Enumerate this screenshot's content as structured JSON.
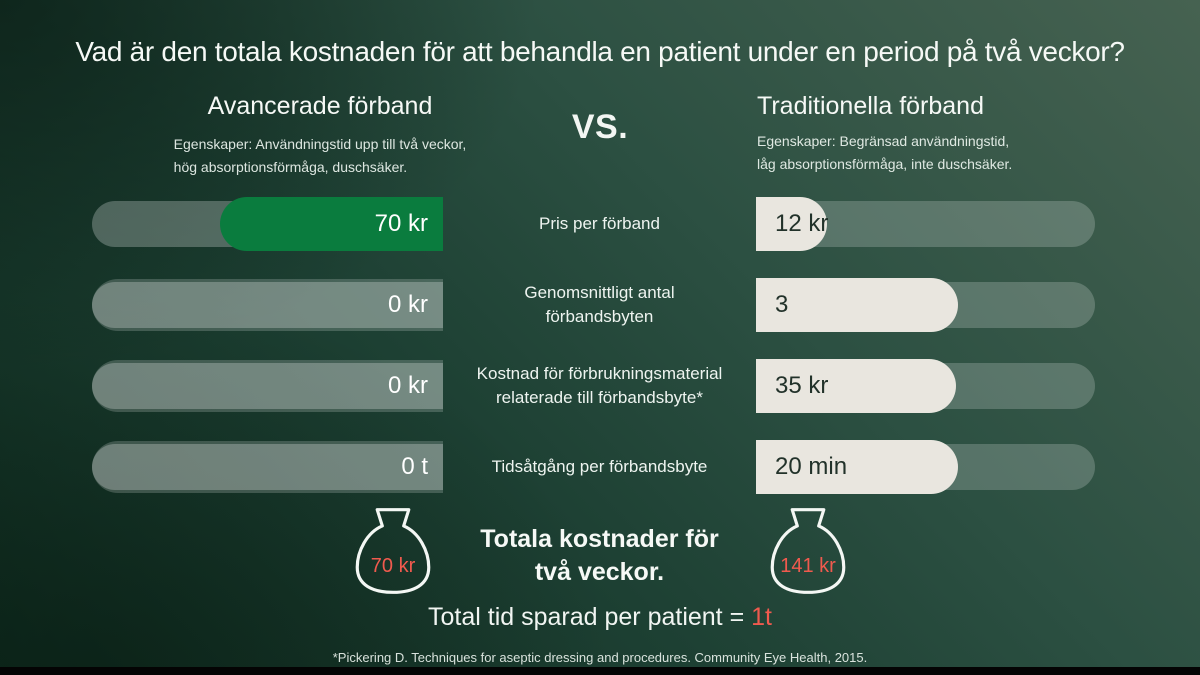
{
  "title": "Vad är den totala kostnaden för att behandla en patient under en period på två veckor?",
  "vs_label": "VS.",
  "left_column": {
    "heading": "Avancerade förband",
    "subtitle_line1": "Egenskaper: Användningstid upp till två veckor,",
    "subtitle_line2": "hög absorptionsförmåga, duschsäker."
  },
  "right_column": {
    "heading": "Traditionella förband",
    "subtitle_line1": "Egenskaper: Begränsad användningstid,",
    "subtitle_line2": "låg absorptionsförmåga, inte duschsäker."
  },
  "rows": [
    {
      "label": "Pris per förband",
      "left_value": "70 kr",
      "left_fill_pct": 63.5,
      "left_fill_class": "fill-green",
      "right_value": "12 kr",
      "right_fill_pct": 21
    },
    {
      "label": "Genomsnittligt antal\nförbandsbyten",
      "left_value": "0 kr",
      "left_fill_pct": 100,
      "left_fill_class": "fill-zero",
      "right_value": "3",
      "right_fill_pct": 59.5
    },
    {
      "label": "Kostnad för förbrukningsmaterial\nrelaterade till förbandsbyte*",
      "left_value": "0 kr",
      "left_fill_pct": 100,
      "left_fill_class": "fill-zero",
      "right_value": "35 kr",
      "right_fill_pct": 59
    },
    {
      "label": "Tidsåtgång per förbandsbyte",
      "left_value": "0 t",
      "left_fill_pct": 100,
      "left_fill_class": "fill-zero",
      "right_value": "20 min",
      "right_fill_pct": 59.5
    }
  ],
  "totals": {
    "caption": "Totala kostnader för\ntvå veckor.",
    "left_total": "70 kr",
    "right_total": "141 kr",
    "money_bag_icon": "money-bag-icon"
  },
  "time_saved": {
    "prefix": "Total tid sparad per patient = ",
    "value": "1t"
  },
  "footnote": "*Pickering D. Techniques for aseptic dressing and procedures. Community Eye Health, 2015.",
  "colors": {
    "accent_green": "#0a7c3e",
    "cream_fill": "#e9e6df",
    "coral_accent": "#f05a4e",
    "background_dark_green": "#1d4033"
  },
  "chart_data": {
    "type": "bar",
    "title": "Vad är den totala kostnaden för att behandla en patient under en period på två veckor?",
    "categories": [
      "Pris per förband",
      "Genomsnittligt antal förbandsbyten",
      "Kostnad för förbrukningsmaterial relaterade till förbandsbyte*",
      "Tidsåtgång per förbandsbyte"
    ],
    "series": [
      {
        "name": "Avancerade förband",
        "values": [
          70,
          0,
          0,
          0
        ],
        "labels": [
          "70 kr",
          "0 kr",
          "0 kr",
          "0 t"
        ]
      },
      {
        "name": "Traditionella förband",
        "values": [
          12,
          3,
          35,
          20
        ],
        "labels": [
          "12 kr",
          "3",
          "35 kr",
          "20 min"
        ]
      }
    ],
    "totals_two_weeks": {
      "Avancerade förband": "70 kr",
      "Traditionella förband": "141 kr"
    },
    "time_saved_per_patient": "1t",
    "layout": "mirrored horizontal comparison bars, advanced dressings on left (green fill), traditional on right (cream fill)"
  }
}
